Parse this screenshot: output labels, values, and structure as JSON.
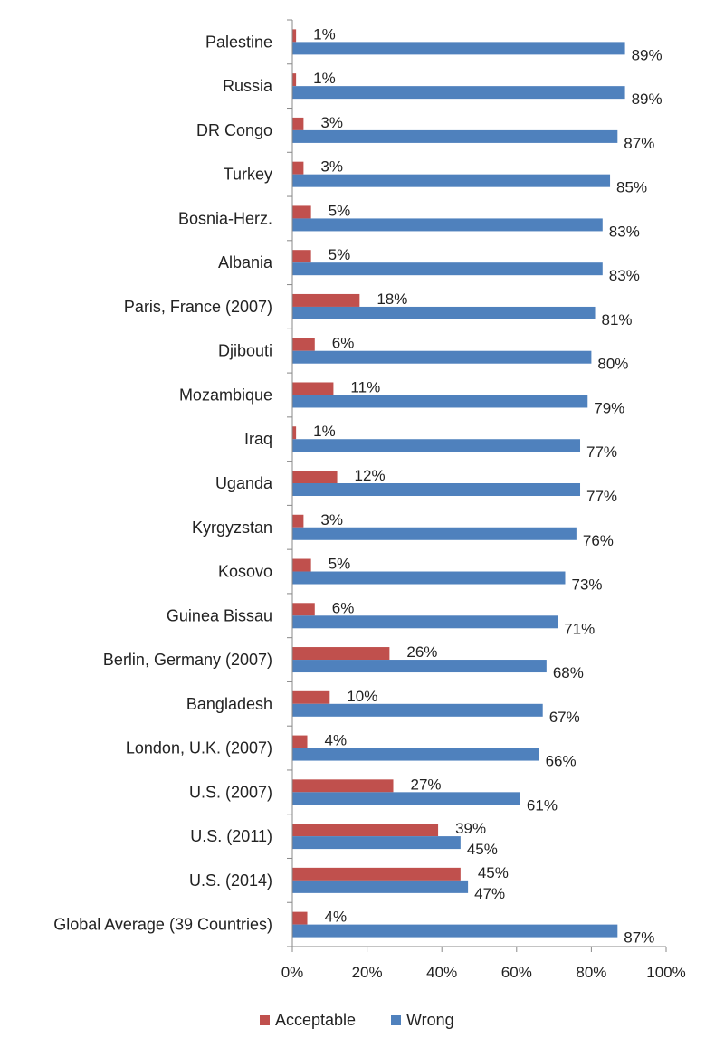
{
  "chart_data": {
    "type": "bar",
    "orientation": "horizontal",
    "categories": [
      "Palestine",
      "Russia",
      "DR Congo",
      "Turkey",
      "Bosnia-Herz.",
      "Albania",
      "Paris, France (2007)",
      "Djibouti",
      "Mozambique",
      "Iraq",
      "Uganda",
      "Kyrgyzstan",
      "Kosovo",
      "Guinea Bissau",
      "Berlin, Germany (2007)",
      "Bangladesh",
      "London, U.K. (2007)",
      "U.S. (2007)",
      "U.S. (2011)",
      "U.S. (2014)",
      "Global Average (39 Countries)"
    ],
    "series": [
      {
        "name": "Acceptable",
        "color": "#C0504D",
        "values": [
          1,
          1,
          3,
          3,
          5,
          5,
          18,
          6,
          11,
          1,
          12,
          3,
          5,
          6,
          26,
          10,
          4,
          27,
          39,
          45,
          4
        ],
        "labels": [
          "1%",
          "1%",
          "3%",
          "3%",
          "5%",
          "5%",
          "18%",
          "6%",
          "11%",
          "1%",
          "12%",
          "3%",
          "5%",
          "6%",
          "26%",
          "10%",
          "4%",
          "27%",
          "39%",
          "45%",
          "4%"
        ]
      },
      {
        "name": "Wrong",
        "color": "#4F81BD",
        "values": [
          89,
          89,
          87,
          85,
          83,
          83,
          81,
          80,
          79,
          77,
          77,
          76,
          73,
          71,
          68,
          67,
          66,
          61,
          45,
          47,
          87
        ],
        "labels": [
          "89%",
          "89%",
          "87%",
          "85%",
          "83%",
          "83%",
          "81%",
          "80%",
          "79%",
          "77%",
          "77%",
          "76%",
          "73%",
          "71%",
          "68%",
          "67%",
          "66%",
          "61%",
          "45%",
          "47%",
          "87%"
        ]
      }
    ],
    "xlim": [
      0,
      100
    ],
    "x_ticks": [
      0,
      20,
      40,
      60,
      80,
      100
    ],
    "x_tick_labels": [
      "0%",
      "20%",
      "40%",
      "60%",
      "80%",
      "100%"
    ],
    "grid": false,
    "legend_position": "bottom",
    "title": "",
    "xlabel": "",
    "ylabel": ""
  }
}
